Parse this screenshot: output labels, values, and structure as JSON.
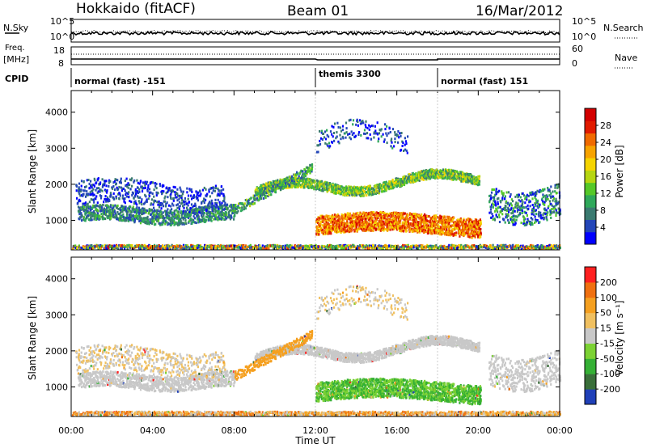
{
  "header": {
    "station": "Hokkaido (fitACF)",
    "beam": "Beam 01",
    "date": "16/Mar/2012"
  },
  "params": {
    "nsky_label": "N.Sky",
    "nsky_ticks": [
      "10^5",
      "10^0"
    ],
    "nsearch_label": "N.Search",
    "nsearch_ticks": [
      "10^5",
      "10^0"
    ],
    "freq_label": "Freq.",
    "freq_unit": "[MHz]",
    "freq_ticks": [
      "18",
      "8"
    ],
    "nave_label": "Nave",
    "nave_ticks": [
      "60",
      "0"
    ],
    "cpid_label": "CPID",
    "cpid_segments": [
      {
        "label": "normal (fast) -151",
        "start_hour": 0,
        "end_hour": 12
      },
      {
        "label": "themis 3300",
        "start_hour": 12,
        "end_hour": 18
      },
      {
        "label": "normal (fast) 151",
        "start_hour": 18,
        "end_hour": 24
      }
    ]
  },
  "chart_data": [
    {
      "type": "heatmap",
      "title": "Power",
      "ylabel": "Slant Range [km]",
      "xlim_hours": [
        0,
        24
      ],
      "ylim": [
        180,
        4600
      ],
      "yticks": [
        "1000",
        "2000",
        "3000",
        "4000"
      ],
      "colorbar": {
        "label": "Power [dB]",
        "ticks": [
          "28",
          "24",
          "20",
          "16",
          "12",
          "8",
          "4"
        ],
        "range": [
          0,
          30
        ],
        "colors": [
          "#0000ff",
          "#2346b8",
          "#3a7a70",
          "#2fa85a",
          "#55c828",
          "#b6d611",
          "#f5d400",
          "#f7a300",
          "#f06a00",
          "#e11b00",
          "#d30000"
        ]
      }
    },
    {
      "type": "heatmap",
      "title": "Velocity",
      "ylabel": "Slant Range [km]",
      "xlabel": "Time UT",
      "xlim_hours": [
        0,
        24
      ],
      "ylim": [
        180,
        4600
      ],
      "yticks": [
        "1000",
        "2000",
        "3000",
        "4000"
      ],
      "xticks": [
        "00:00",
        "04:00",
        "08:00",
        "12:00",
        "16:00",
        "20:00",
        "00:00"
      ],
      "colorbar": {
        "label": "Velocity [m s⁻¹]",
        "ticks": [
          "200",
          "100",
          "50",
          "15",
          "-15",
          "-50",
          "-100",
          "-200"
        ],
        "colors": [
          "#2040b8",
          "#3a6f3a",
          "#35b035",
          "#7cd234",
          "#c8c8c8",
          "#f0c060",
          "#f5a020",
          "#f07010",
          "#ff2020"
        ]
      }
    }
  ]
}
